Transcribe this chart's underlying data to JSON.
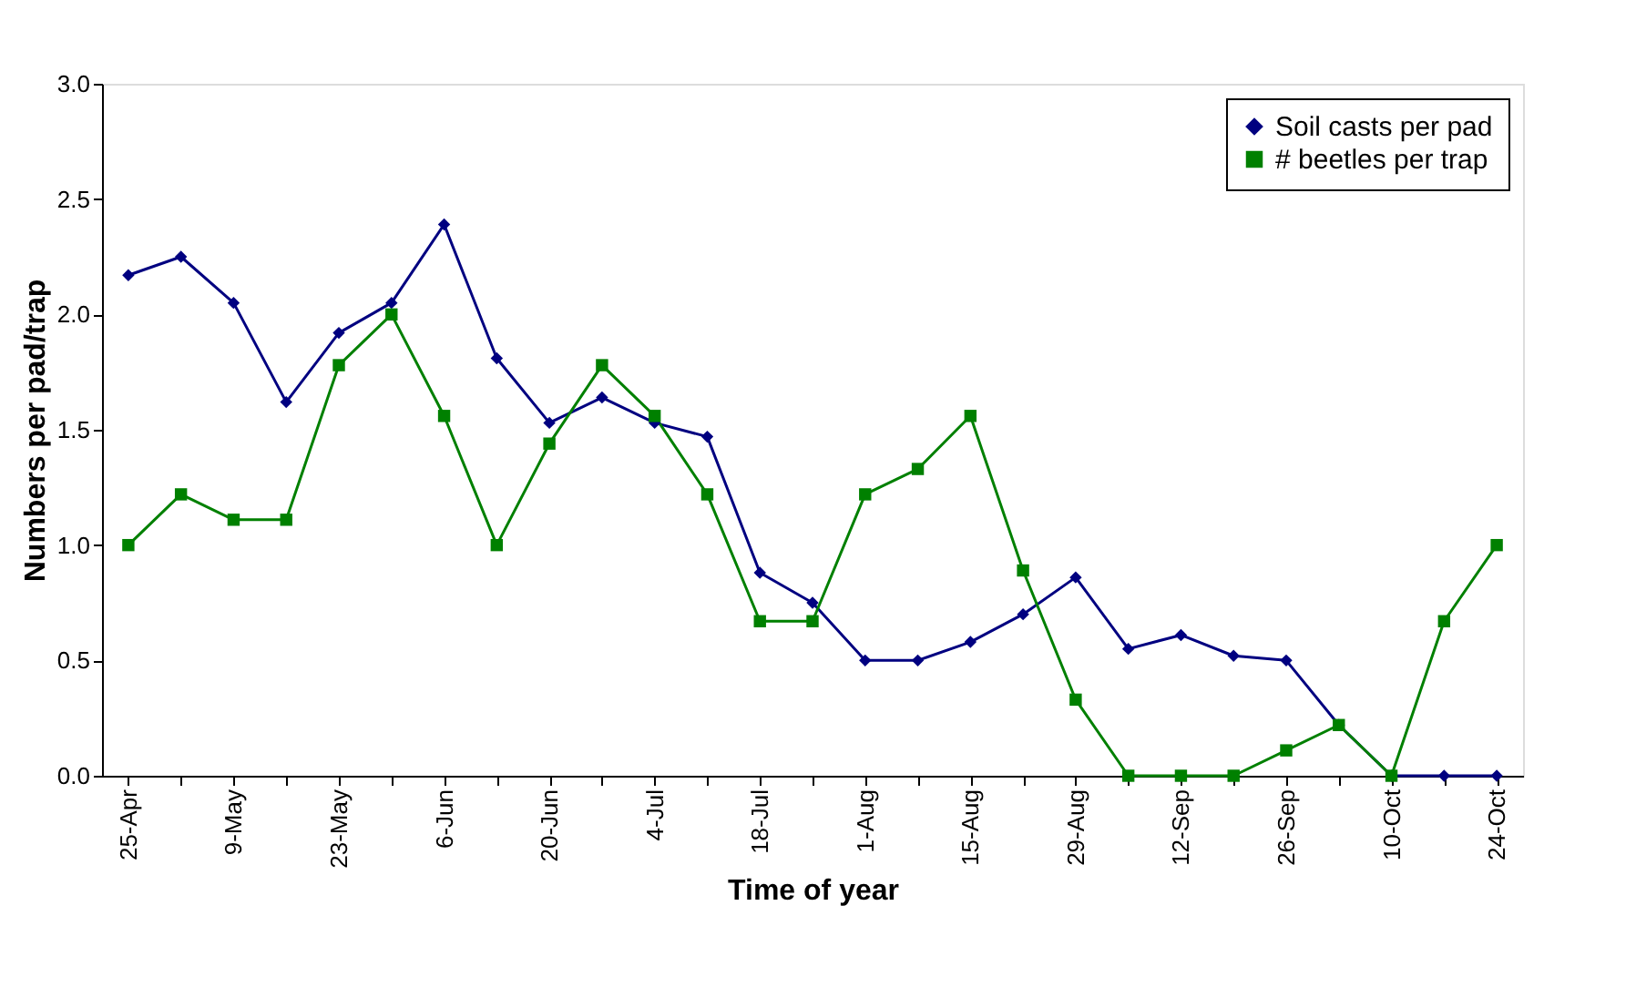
{
  "chart_data": {
    "type": "line",
    "xlabel": "Time of year",
    "ylabel": "Numbers per pad/trap",
    "categories": [
      "25-Apr",
      null,
      "9-May",
      null,
      "23-May",
      null,
      "6-Jun",
      null,
      "20-Jun",
      null,
      "4-Jul",
      null,
      "18-Jul",
      null,
      "1-Aug",
      null,
      "15-Aug",
      null,
      "29-Aug",
      null,
      "12-Sep",
      null,
      "26-Sep",
      null,
      "10-Oct",
      null,
      "24-Oct"
    ],
    "series": [
      {
        "name": "Soil casts per pad",
        "color": "#000080",
        "marker": "diamond",
        "values": [
          2.17,
          2.25,
          2.05,
          1.62,
          1.92,
          2.05,
          2.39,
          1.81,
          1.53,
          1.64,
          1.53,
          1.47,
          0.88,
          0.75,
          0.5,
          0.5,
          0.58,
          0.7,
          0.86,
          0.55,
          0.61,
          0.52,
          0.5,
          0.22,
          0.0,
          0.0,
          0.0
        ]
      },
      {
        "name": "# beetles per trap",
        "color": "#008000",
        "marker": "square",
        "values": [
          1.0,
          1.22,
          1.11,
          1.11,
          1.78,
          2.0,
          1.56,
          1.0,
          1.44,
          1.78,
          1.56,
          1.22,
          0.67,
          0.67,
          1.22,
          1.33,
          1.56,
          0.89,
          0.33,
          0.0,
          0.0,
          0.0,
          0.11,
          0.22,
          0.0,
          0.67,
          1.0
        ]
      }
    ],
    "ylim": [
      0,
      3
    ],
    "yticks": [
      {
        "value": 0,
        "label": "0.0"
      },
      {
        "value": 0.5,
        "label": "0.5"
      },
      {
        "value": 1,
        "label": "1.0"
      },
      {
        "value": 1.5,
        "label": "1.5"
      },
      {
        "value": 2,
        "label": "2.0"
      },
      {
        "value": 2.5,
        "label": "2.5"
      },
      {
        "value": 3,
        "label": "3.0"
      }
    ],
    "grid": false,
    "legend": "top right",
    "line_style": "solid"
  }
}
